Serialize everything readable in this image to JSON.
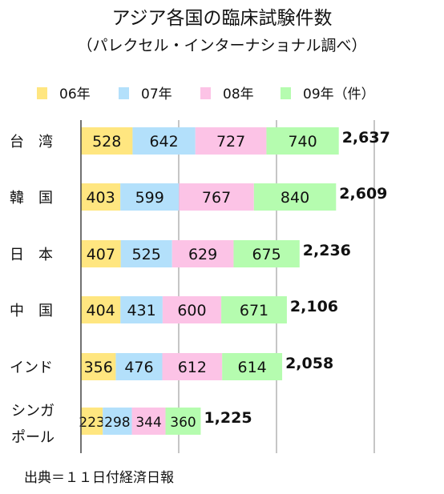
{
  "title": "アジア各国の臨床試験件数",
  "subtitle": "（パレクセル・インターナショナル調べ）",
  "source": "出典＝１１日付経済日報",
  "colors": {
    "06年": "#ffe680",
    "07年": "#b3e0fb",
    "08年": "#fcc3e6",
    "09年": "#b5fcaf"
  },
  "chart_data": {
    "type": "bar",
    "orientation": "horizontal",
    "stacked": true,
    "title": "アジア各国の臨床試験件数",
    "subtitle": "（パレクセル・インターナショナル調べ）",
    "categories": [
      "台　湾",
      "韓　国",
      "日　本",
      "中　国",
      "インド",
      "シンガポール"
    ],
    "series": [
      {
        "name": "06年",
        "values": [
          528,
          403,
          407,
          404,
          356,
          223
        ]
      },
      {
        "name": "07年",
        "values": [
          642,
          599,
          525,
          431,
          476,
          298
        ]
      },
      {
        "name": "08年",
        "values": [
          727,
          767,
          629,
          600,
          612,
          344
        ]
      },
      {
        "name": "09年",
        "values": [
          740,
          840,
          675,
          671,
          614,
          360
        ]
      }
    ],
    "totals": [
      "2,637",
      "2,609",
      "2,236",
      "2,106",
      "2,058",
      "1,225"
    ],
    "legend_suffix": "（件）",
    "legend_position": "top",
    "grid": true,
    "xlim": [
      0,
      3500
    ]
  }
}
